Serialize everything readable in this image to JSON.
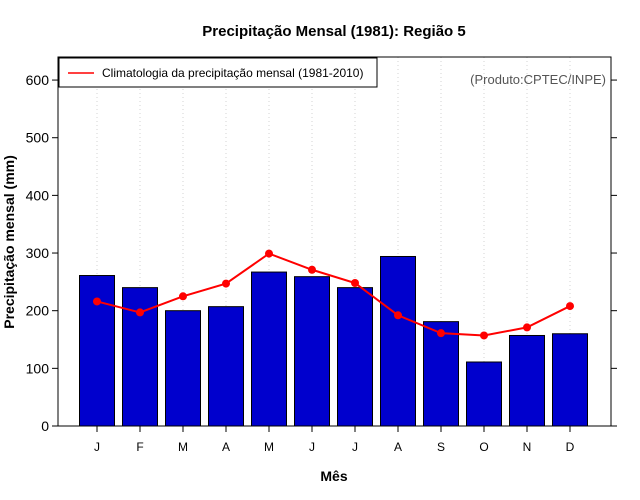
{
  "chart_data": {
    "type": "bar",
    "title": "Precipitação Mensal (1981): Região 5",
    "xlabel": "Mês",
    "ylabel": "Precipitação mensal (mm)",
    "ylim": [
      0,
      640
    ],
    "yticks": [
      0,
      100,
      200,
      300,
      400,
      500,
      600
    ],
    "categories": [
      "J",
      "F",
      "M",
      "A",
      "M",
      "J",
      "J",
      "A",
      "S",
      "O",
      "N",
      "D"
    ],
    "series": [
      {
        "name": "Precipitação mensal (1981)",
        "type": "bar",
        "values": [
          261,
          240,
          200,
          207,
          267,
          259,
          240,
          294,
          181,
          111,
          157,
          160
        ],
        "color": "#0000CD"
      },
      {
        "name": "Climatologia da precipitação mensal (1981-2010)",
        "type": "line",
        "values": [
          216,
          197,
          225,
          247,
          299,
          271,
          248,
          192,
          161,
          157,
          171,
          208
        ],
        "color": "#FF0000"
      }
    ],
    "legend": {
      "position": "top-left",
      "label": "Climatologia da precipitação mensal (1981-2010)"
    },
    "annotation": "(Produto:CPTEC/INPE)",
    "grid": "vertical-dotted"
  }
}
